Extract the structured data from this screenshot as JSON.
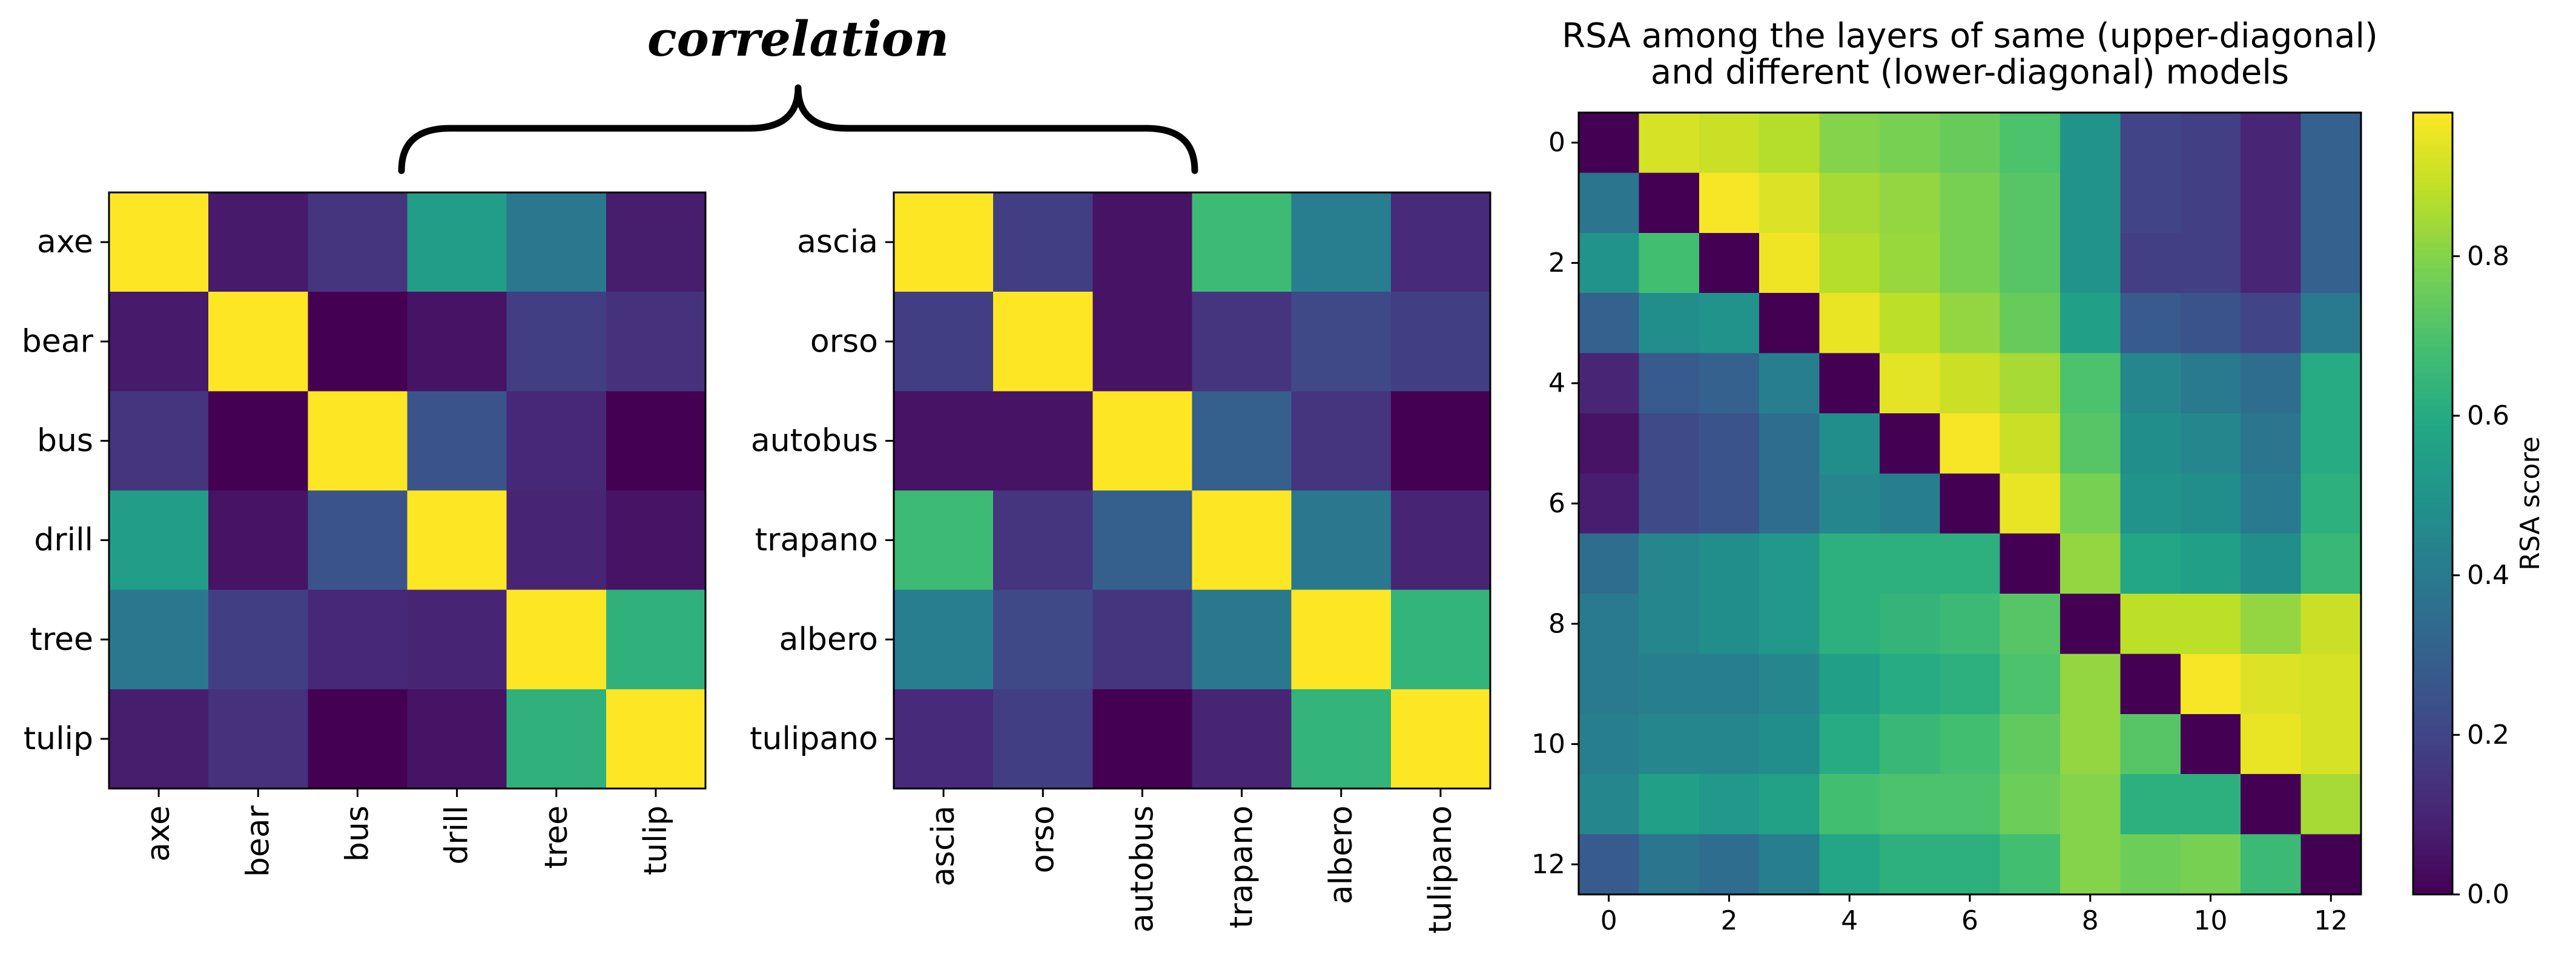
{
  "header": {
    "brace_label": "correlation"
  },
  "chart_data": [
    {
      "type": "heatmap",
      "title": "",
      "xlabel": "",
      "ylabel": "",
      "rows": [
        "axe",
        "bear",
        "bus",
        "drill",
        "tree",
        "tulip"
      ],
      "cols": [
        "axe",
        "bear",
        "bus",
        "drill",
        "tree",
        "tulip"
      ],
      "colormap": "viridis",
      "vmin": 0,
      "vmax": 1,
      "values": [
        [
          1.0,
          0.07,
          0.15,
          0.55,
          0.4,
          0.08
        ],
        [
          0.07,
          1.0,
          0.0,
          0.05,
          0.18,
          0.14
        ],
        [
          0.15,
          0.0,
          1.0,
          0.26,
          0.11,
          0.0
        ],
        [
          0.55,
          0.05,
          0.26,
          1.0,
          0.1,
          0.05
        ],
        [
          0.4,
          0.18,
          0.11,
          0.1,
          1.0,
          0.64
        ],
        [
          0.08,
          0.14,
          0.0,
          0.05,
          0.64,
          1.0
        ]
      ]
    },
    {
      "type": "heatmap",
      "title": "",
      "xlabel": "",
      "ylabel": "",
      "rows": [
        "ascia",
        "orso",
        "autobus",
        "trapano",
        "albero",
        "tulipano"
      ],
      "cols": [
        "ascia",
        "orso",
        "autobus",
        "trapano",
        "albero",
        "tulipano"
      ],
      "colormap": "viridis",
      "vmin": 0,
      "vmax": 1,
      "values": [
        [
          1.0,
          0.18,
          0.05,
          0.68,
          0.42,
          0.12
        ],
        [
          0.18,
          1.0,
          0.05,
          0.15,
          0.22,
          0.18
        ],
        [
          0.05,
          0.05,
          1.0,
          0.3,
          0.15,
          0.0
        ],
        [
          0.68,
          0.15,
          0.3,
          1.0,
          0.4,
          0.1
        ],
        [
          0.42,
          0.22,
          0.15,
          0.4,
          1.0,
          0.65
        ],
        [
          0.12,
          0.18,
          0.0,
          0.1,
          0.65,
          1.0
        ]
      ]
    },
    {
      "type": "heatmap",
      "title": "RSA among the layers of same (upper-diagonal)\nand different (lower-diagonal) models",
      "xlabel": "",
      "ylabel": "",
      "rows": [
        0,
        1,
        2,
        3,
        4,
        5,
        6,
        7,
        8,
        9,
        10,
        11,
        12
      ],
      "cols": [
        0,
        1,
        2,
        3,
        4,
        5,
        6,
        7,
        8,
        9,
        10,
        11,
        12
      ],
      "xticks": [
        0,
        2,
        4,
        6,
        8,
        10,
        12
      ],
      "yticks": [
        0,
        2,
        4,
        6,
        8,
        10,
        12
      ],
      "colormap": "viridis",
      "vmin": 0,
      "vmax": 0.98,
      "colorbar": {
        "label": "RSA score",
        "ticks": [
          0.0,
          0.2,
          0.4,
          0.6,
          0.8
        ],
        "tick_labels": [
          "0.0",
          "0.2",
          "0.4",
          "0.6",
          "0.8"
        ]
      },
      "values": [
        [
          0.0,
          0.92,
          0.9,
          0.87,
          0.8,
          0.78,
          0.75,
          0.7,
          0.5,
          0.2,
          0.18,
          0.1,
          0.3
        ],
        [
          0.38,
          0.0,
          0.97,
          0.93,
          0.85,
          0.82,
          0.78,
          0.72,
          0.5,
          0.2,
          0.18,
          0.1,
          0.3
        ],
        [
          0.5,
          0.68,
          0.0,
          0.96,
          0.87,
          0.83,
          0.78,
          0.72,
          0.5,
          0.18,
          0.18,
          0.1,
          0.3
        ],
        [
          0.3,
          0.48,
          0.5,
          0.0,
          0.95,
          0.88,
          0.82,
          0.75,
          0.55,
          0.28,
          0.25,
          0.2,
          0.4
        ],
        [
          0.1,
          0.28,
          0.3,
          0.42,
          0.0,
          0.94,
          0.9,
          0.85,
          0.7,
          0.45,
          0.4,
          0.35,
          0.6
        ],
        [
          0.05,
          0.22,
          0.25,
          0.35,
          0.48,
          0.0,
          0.97,
          0.9,
          0.72,
          0.48,
          0.45,
          0.38,
          0.6
        ],
        [
          0.08,
          0.22,
          0.25,
          0.35,
          0.45,
          0.42,
          0.0,
          0.95,
          0.78,
          0.5,
          0.48,
          0.4,
          0.62
        ],
        [
          0.35,
          0.45,
          0.48,
          0.52,
          0.62,
          0.62,
          0.62,
          0.0,
          0.82,
          0.58,
          0.55,
          0.48,
          0.65
        ],
        [
          0.4,
          0.45,
          0.48,
          0.52,
          0.62,
          0.64,
          0.66,
          0.72,
          0.0,
          0.88,
          0.88,
          0.82,
          0.9
        ],
        [
          0.4,
          0.42,
          0.42,
          0.45,
          0.55,
          0.6,
          0.62,
          0.7,
          0.82,
          0.0,
          0.97,
          0.93,
          0.92
        ],
        [
          0.42,
          0.45,
          0.45,
          0.48,
          0.6,
          0.65,
          0.68,
          0.74,
          0.82,
          0.72,
          0.0,
          0.95,
          0.92
        ],
        [
          0.45,
          0.55,
          0.52,
          0.56,
          0.68,
          0.7,
          0.7,
          0.76,
          0.8,
          0.62,
          0.62,
          0.0,
          0.85
        ],
        [
          0.28,
          0.38,
          0.35,
          0.42,
          0.58,
          0.62,
          0.62,
          0.68,
          0.8,
          0.76,
          0.78,
          0.66,
          0.0
        ]
      ]
    }
  ]
}
